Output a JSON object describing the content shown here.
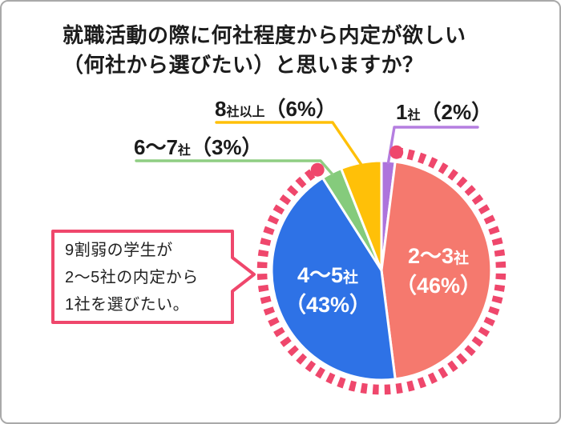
{
  "title": {
    "line1": "就職活動の際に何社程度から内定が欲しい",
    "line2": "（何社から選びたい）と思いますか？"
  },
  "chart_data": {
    "type": "pie",
    "title": "就職活動の際に何社程度から内定が欲しい（何社から選びたい）と思いますか？",
    "unit": "%",
    "start_angle_deg": 0,
    "direction": "clockwise",
    "slices": [
      {
        "label": "1社",
        "value": 2,
        "color": "#AD74DC",
        "leader_color": "#B57EE0",
        "label_parts": {
          "big": "1",
          "small": "社"
        },
        "pct_label": "（2%）"
      },
      {
        "label": "2〜3社",
        "value": 46,
        "color": "#F5796E",
        "label_parts": {
          "big": "2〜3",
          "small": "社"
        },
        "pct_label": "（46%）"
      },
      {
        "label": "4〜5社",
        "value": 43,
        "color": "#2E72E6",
        "label_parts": {
          "big": "4〜5",
          "small": "社"
        },
        "pct_label": "（43%）"
      },
      {
        "label": "6〜7社",
        "value": 3,
        "color": "#85CB7C",
        "leader_color": "#8FCE83",
        "label_parts": {
          "big": "6〜7",
          "small": "社"
        },
        "pct_label": "（3%）"
      },
      {
        "label": "8社以上",
        "value": 6,
        "color": "#FFC008",
        "leader_color": "#FFC008",
        "label_parts": {
          "big": "8",
          "small": "社以上"
        },
        "pct_label": "（6%）"
      }
    ],
    "highlight_arc": {
      "covers_slices": [
        1,
        2
      ],
      "covers_label": "2〜5社",
      "style": "dashed",
      "color": "#EF476C",
      "endpoint_dots": true
    }
  },
  "callout": {
    "lines": [
      "9割弱の学生が",
      "2〜5社の内定から",
      "1社を選びたい。"
    ],
    "border_color": "#EF476C",
    "text_color": "#222222"
  }
}
